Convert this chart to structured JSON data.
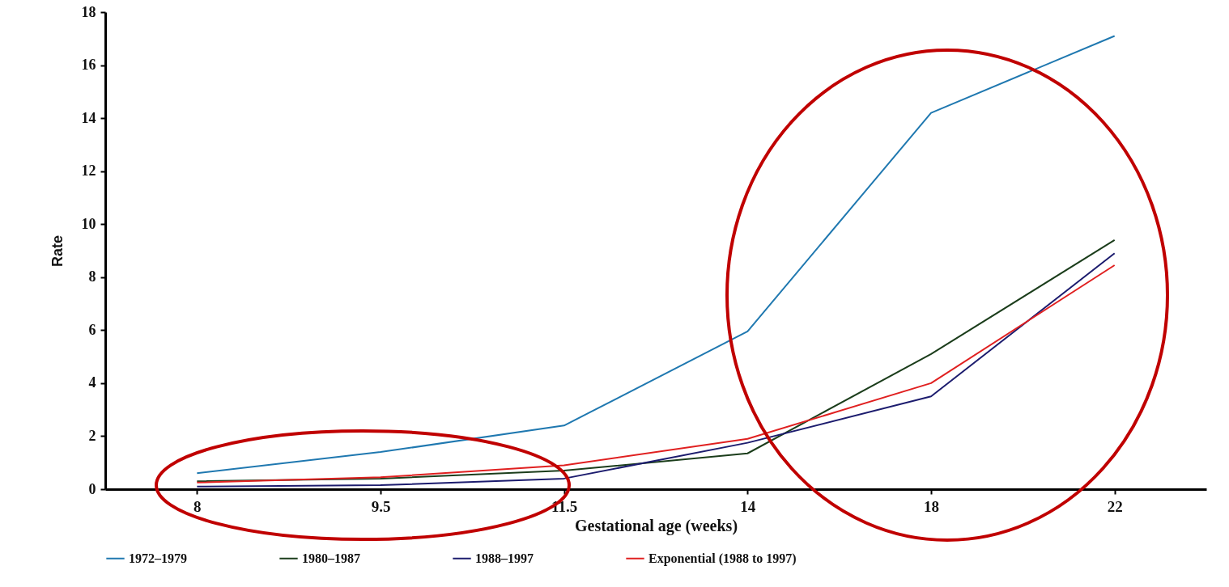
{
  "chart_data": {
    "type": "line",
    "xlabel": "Gestational age (weeks)",
    "ylabel": "Rate",
    "categories": [
      "8",
      "9.5",
      "11.5",
      "14",
      "18",
      "22"
    ],
    "series": [
      {
        "name": "1972–1979",
        "color": "#1f78b0",
        "values": [
          0.6,
          1.4,
          2.4,
          5.95,
          14.2,
          17.1
        ]
      },
      {
        "name": "1980–1987",
        "color": "#1b3d1b",
        "values": [
          0.3,
          0.4,
          0.7,
          1.35,
          5.1,
          9.4
        ]
      },
      {
        "name": "1988–1997",
        "color": "#1c1c6e",
        "values": [
          0.1,
          0.15,
          0.4,
          1.75,
          3.5,
          8.9
        ]
      },
      {
        "name": "Exponential (1988 to 1997)",
        "color": "#e02020",
        "values": [
          0.25,
          0.45,
          0.9,
          1.9,
          4.0,
          8.45
        ]
      }
    ],
    "ylim": [
      0,
      18
    ],
    "yticks": [
      0,
      2,
      4,
      6,
      8,
      10,
      12,
      14,
      16,
      18
    ],
    "grid": false,
    "legend": "bottom",
    "marker": "none",
    "line_style": "solid"
  }
}
